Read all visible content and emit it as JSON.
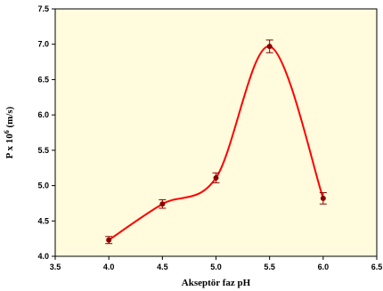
{
  "chart_data": {
    "type": "line",
    "xlabel": "Akseptör faz pH",
    "ylabel_main": "P x 10",
    "ylabel_sup": "6",
    "ylabel_unit": " (m/s)",
    "xlim": [
      3.5,
      6.5
    ],
    "ylim": [
      4.0,
      7.5
    ],
    "x_ticks": [
      "3.5",
      "4.0",
      "4.5",
      "5.0",
      "5.5",
      "6.0",
      "6.5"
    ],
    "y_ticks": [
      "4.0",
      "4.5",
      "5.0",
      "5.5",
      "6.0",
      "6.5",
      "7.0",
      "7.5"
    ],
    "grid": false,
    "smooth": true,
    "x": [
      4.0,
      4.5,
      5.0,
      5.5,
      6.0
    ],
    "y": [
      4.23,
      4.74,
      5.11,
      6.97,
      4.82
    ],
    "error": [
      0.05,
      0.06,
      0.07,
      0.09,
      0.08
    ],
    "line_color": "#ff0000",
    "marker_color": "#8b0000",
    "errorbar_color": "#8b0000",
    "plot_background": "#fffbdc"
  }
}
